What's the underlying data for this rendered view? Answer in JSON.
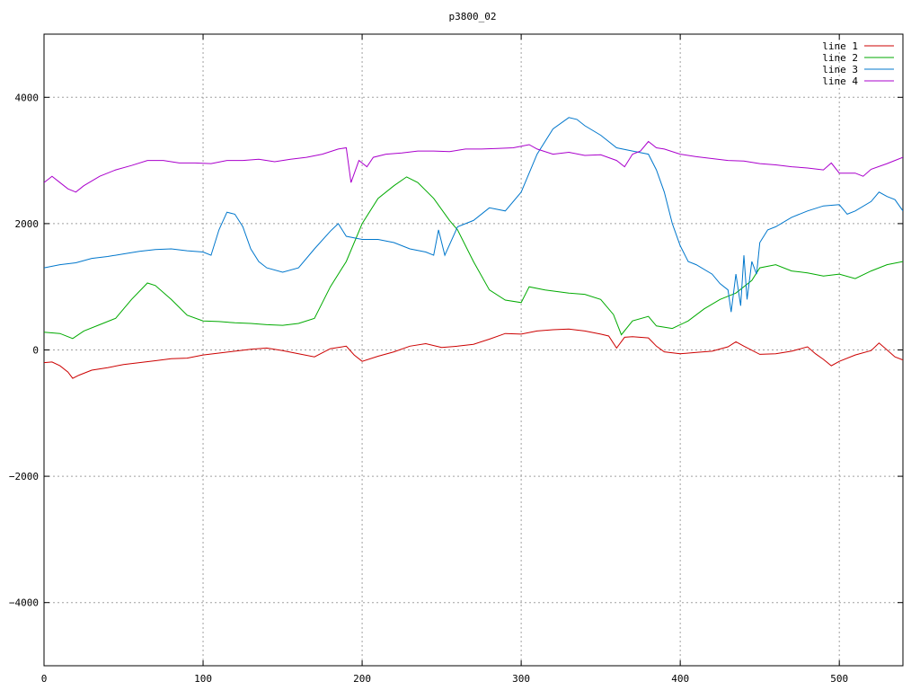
{
  "chart_data": {
    "type": "line",
    "title": "p3800_02",
    "xlabel": "",
    "ylabel": "",
    "xlim": [
      0,
      540
    ],
    "ylim": [
      -5000,
      5000
    ],
    "xticks": [
      0,
      100,
      200,
      300,
      400,
      500
    ],
    "yticks": [
      -4000,
      -2000,
      0,
      2000,
      4000
    ],
    "grid": true,
    "legend_position": "top-right",
    "series": [
      {
        "name": "line 1",
        "color": "#cc0000",
        "points": [
          [
            0,
            -200
          ],
          [
            5,
            -190
          ],
          [
            10,
            -250
          ],
          [
            15,
            -350
          ],
          [
            18,
            -450
          ],
          [
            22,
            -400
          ],
          [
            30,
            -320
          ],
          [
            40,
            -280
          ],
          [
            50,
            -230
          ],
          [
            60,
            -200
          ],
          [
            70,
            -170
          ],
          [
            80,
            -140
          ],
          [
            90,
            -130
          ],
          [
            100,
            -80
          ],
          [
            110,
            -50
          ],
          [
            120,
            -20
          ],
          [
            130,
            10
          ],
          [
            140,
            30
          ],
          [
            150,
            -10
          ],
          [
            160,
            -60
          ],
          [
            170,
            -110
          ],
          [
            180,
            20
          ],
          [
            190,
            60
          ],
          [
            195,
            -80
          ],
          [
            200,
            -180
          ],
          [
            210,
            -100
          ],
          [
            220,
            -30
          ],
          [
            230,
            60
          ],
          [
            240,
            100
          ],
          [
            250,
            40
          ],
          [
            260,
            60
          ],
          [
            270,
            90
          ],
          [
            280,
            170
          ],
          [
            290,
            260
          ],
          [
            300,
            250
          ],
          [
            310,
            300
          ],
          [
            320,
            320
          ],
          [
            330,
            330
          ],
          [
            340,
            300
          ],
          [
            350,
            250
          ],
          [
            355,
            220
          ],
          [
            360,
            30
          ],
          [
            365,
            200
          ],
          [
            370,
            210
          ],
          [
            380,
            190
          ],
          [
            385,
            60
          ],
          [
            390,
            -30
          ],
          [
            400,
            -60
          ],
          [
            410,
            -40
          ],
          [
            420,
            -20
          ],
          [
            430,
            50
          ],
          [
            435,
            130
          ],
          [
            440,
            60
          ],
          [
            450,
            -70
          ],
          [
            460,
            -60
          ],
          [
            470,
            -20
          ],
          [
            480,
            50
          ],
          [
            485,
            -60
          ],
          [
            490,
            -150
          ],
          [
            495,
            -250
          ],
          [
            500,
            -180
          ],
          [
            510,
            -80
          ],
          [
            520,
            -10
          ],
          [
            525,
            110
          ],
          [
            530,
            0
          ],
          [
            535,
            -110
          ],
          [
            540,
            -160
          ]
        ]
      },
      {
        "name": "line 2",
        "color": "#00aa00",
        "points": [
          [
            0,
            280
          ],
          [
            10,
            260
          ],
          [
            18,
            180
          ],
          [
            25,
            300
          ],
          [
            35,
            400
          ],
          [
            45,
            500
          ],
          [
            55,
            800
          ],
          [
            65,
            1060
          ],
          [
            70,
            1020
          ],
          [
            80,
            800
          ],
          [
            90,
            550
          ],
          [
            100,
            460
          ],
          [
            110,
            450
          ],
          [
            120,
            430
          ],
          [
            130,
            420
          ],
          [
            140,
            400
          ],
          [
            150,
            390
          ],
          [
            160,
            420
          ],
          [
            170,
            500
          ],
          [
            180,
            1000
          ],
          [
            190,
            1400
          ],
          [
            200,
            2000
          ],
          [
            210,
            2400
          ],
          [
            220,
            2600
          ],
          [
            228,
            2740
          ],
          [
            235,
            2650
          ],
          [
            245,
            2400
          ],
          [
            255,
            2050
          ],
          [
            260,
            1900
          ],
          [
            270,
            1400
          ],
          [
            280,
            950
          ],
          [
            290,
            790
          ],
          [
            300,
            750
          ],
          [
            305,
            1000
          ],
          [
            315,
            950
          ],
          [
            330,
            900
          ],
          [
            340,
            880
          ],
          [
            350,
            800
          ],
          [
            358,
            560
          ],
          [
            363,
            240
          ],
          [
            370,
            460
          ],
          [
            380,
            530
          ],
          [
            385,
            380
          ],
          [
            395,
            340
          ],
          [
            405,
            460
          ],
          [
            415,
            650
          ],
          [
            425,
            800
          ],
          [
            435,
            900
          ],
          [
            445,
            1100
          ],
          [
            450,
            1300
          ],
          [
            460,
            1350
          ],
          [
            470,
            1250
          ],
          [
            480,
            1220
          ],
          [
            490,
            1170
          ],
          [
            500,
            1200
          ],
          [
            510,
            1130
          ],
          [
            520,
            1250
          ],
          [
            530,
            1350
          ],
          [
            540,
            1400
          ]
        ]
      },
      {
        "name": "line 3",
        "color": "#0077cc",
        "points": [
          [
            0,
            1300
          ],
          [
            10,
            1350
          ],
          [
            20,
            1380
          ],
          [
            30,
            1450
          ],
          [
            40,
            1480
          ],
          [
            50,
            1520
          ],
          [
            60,
            1560
          ],
          [
            70,
            1590
          ],
          [
            80,
            1600
          ],
          [
            90,
            1570
          ],
          [
            100,
            1550
          ],
          [
            105,
            1500
          ],
          [
            110,
            1900
          ],
          [
            115,
            2180
          ],
          [
            120,
            2150
          ],
          [
            125,
            1950
          ],
          [
            130,
            1600
          ],
          [
            135,
            1400
          ],
          [
            140,
            1300
          ],
          [
            150,
            1230
          ],
          [
            160,
            1300
          ],
          [
            170,
            1600
          ],
          [
            180,
            1880
          ],
          [
            185,
            2000
          ],
          [
            190,
            1800
          ],
          [
            200,
            1750
          ],
          [
            210,
            1750
          ],
          [
            220,
            1700
          ],
          [
            230,
            1600
          ],
          [
            240,
            1550
          ],
          [
            245,
            1500
          ],
          [
            248,
            1900
          ],
          [
            252,
            1500
          ],
          [
            260,
            1950
          ],
          [
            270,
            2050
          ],
          [
            280,
            2250
          ],
          [
            290,
            2200
          ],
          [
            300,
            2500
          ],
          [
            310,
            3100
          ],
          [
            320,
            3500
          ],
          [
            330,
            3680
          ],
          [
            335,
            3650
          ],
          [
            340,
            3550
          ],
          [
            350,
            3400
          ],
          [
            360,
            3200
          ],
          [
            370,
            3150
          ],
          [
            380,
            3100
          ],
          [
            385,
            2850
          ],
          [
            390,
            2500
          ],
          [
            395,
            2000
          ],
          [
            400,
            1650
          ],
          [
            405,
            1400
          ],
          [
            410,
            1350
          ],
          [
            420,
            1200
          ],
          [
            425,
            1050
          ],
          [
            430,
            950
          ],
          [
            432,
            600
          ],
          [
            435,
            1200
          ],
          [
            438,
            700
          ],
          [
            440,
            1500
          ],
          [
            442,
            800
          ],
          [
            445,
            1400
          ],
          [
            448,
            1200
          ],
          [
            450,
            1700
          ],
          [
            455,
            1900
          ],
          [
            460,
            1950
          ],
          [
            470,
            2100
          ],
          [
            480,
            2200
          ],
          [
            490,
            2280
          ],
          [
            500,
            2300
          ],
          [
            505,
            2150
          ],
          [
            510,
            2200
          ],
          [
            520,
            2350
          ],
          [
            525,
            2500
          ],
          [
            530,
            2430
          ],
          [
            535,
            2380
          ],
          [
            540,
            2200
          ]
        ]
      },
      {
        "name": "line 4",
        "color": "#aa00cc",
        "points": [
          [
            0,
            2650
          ],
          [
            5,
            2750
          ],
          [
            10,
            2650
          ],
          [
            15,
            2550
          ],
          [
            20,
            2500
          ],
          [
            25,
            2600
          ],
          [
            35,
            2750
          ],
          [
            45,
            2850
          ],
          [
            55,
            2920
          ],
          [
            65,
            3000
          ],
          [
            75,
            3000
          ],
          [
            85,
            2960
          ],
          [
            95,
            2960
          ],
          [
            105,
            2950
          ],
          [
            115,
            3000
          ],
          [
            125,
            3000
          ],
          [
            135,
            3020
          ],
          [
            145,
            2980
          ],
          [
            155,
            3020
          ],
          [
            165,
            3050
          ],
          [
            175,
            3100
          ],
          [
            185,
            3180
          ],
          [
            190,
            3200
          ],
          [
            193,
            2650
          ],
          [
            198,
            3000
          ],
          [
            203,
            2900
          ],
          [
            207,
            3050
          ],
          [
            215,
            3100
          ],
          [
            225,
            3120
          ],
          [
            235,
            3150
          ],
          [
            245,
            3150
          ],
          [
            255,
            3140
          ],
          [
            265,
            3180
          ],
          [
            275,
            3180
          ],
          [
            285,
            3190
          ],
          [
            295,
            3200
          ],
          [
            305,
            3250
          ],
          [
            310,
            3180
          ],
          [
            320,
            3100
          ],
          [
            330,
            3130
          ],
          [
            340,
            3080
          ],
          [
            350,
            3090
          ],
          [
            360,
            3000
          ],
          [
            365,
            2900
          ],
          [
            370,
            3100
          ],
          [
            375,
            3150
          ],
          [
            380,
            3300
          ],
          [
            385,
            3200
          ],
          [
            390,
            3180
          ],
          [
            400,
            3100
          ],
          [
            410,
            3060
          ],
          [
            420,
            3030
          ],
          [
            430,
            3000
          ],
          [
            440,
            2990
          ],
          [
            450,
            2950
          ],
          [
            460,
            2930
          ],
          [
            470,
            2900
          ],
          [
            480,
            2880
          ],
          [
            490,
            2850
          ],
          [
            495,
            2960
          ],
          [
            500,
            2800
          ],
          [
            510,
            2800
          ],
          [
            515,
            2750
          ],
          [
            520,
            2860
          ],
          [
            530,
            2950
          ],
          [
            535,
            3000
          ],
          [
            540,
            3050
          ]
        ]
      }
    ]
  }
}
